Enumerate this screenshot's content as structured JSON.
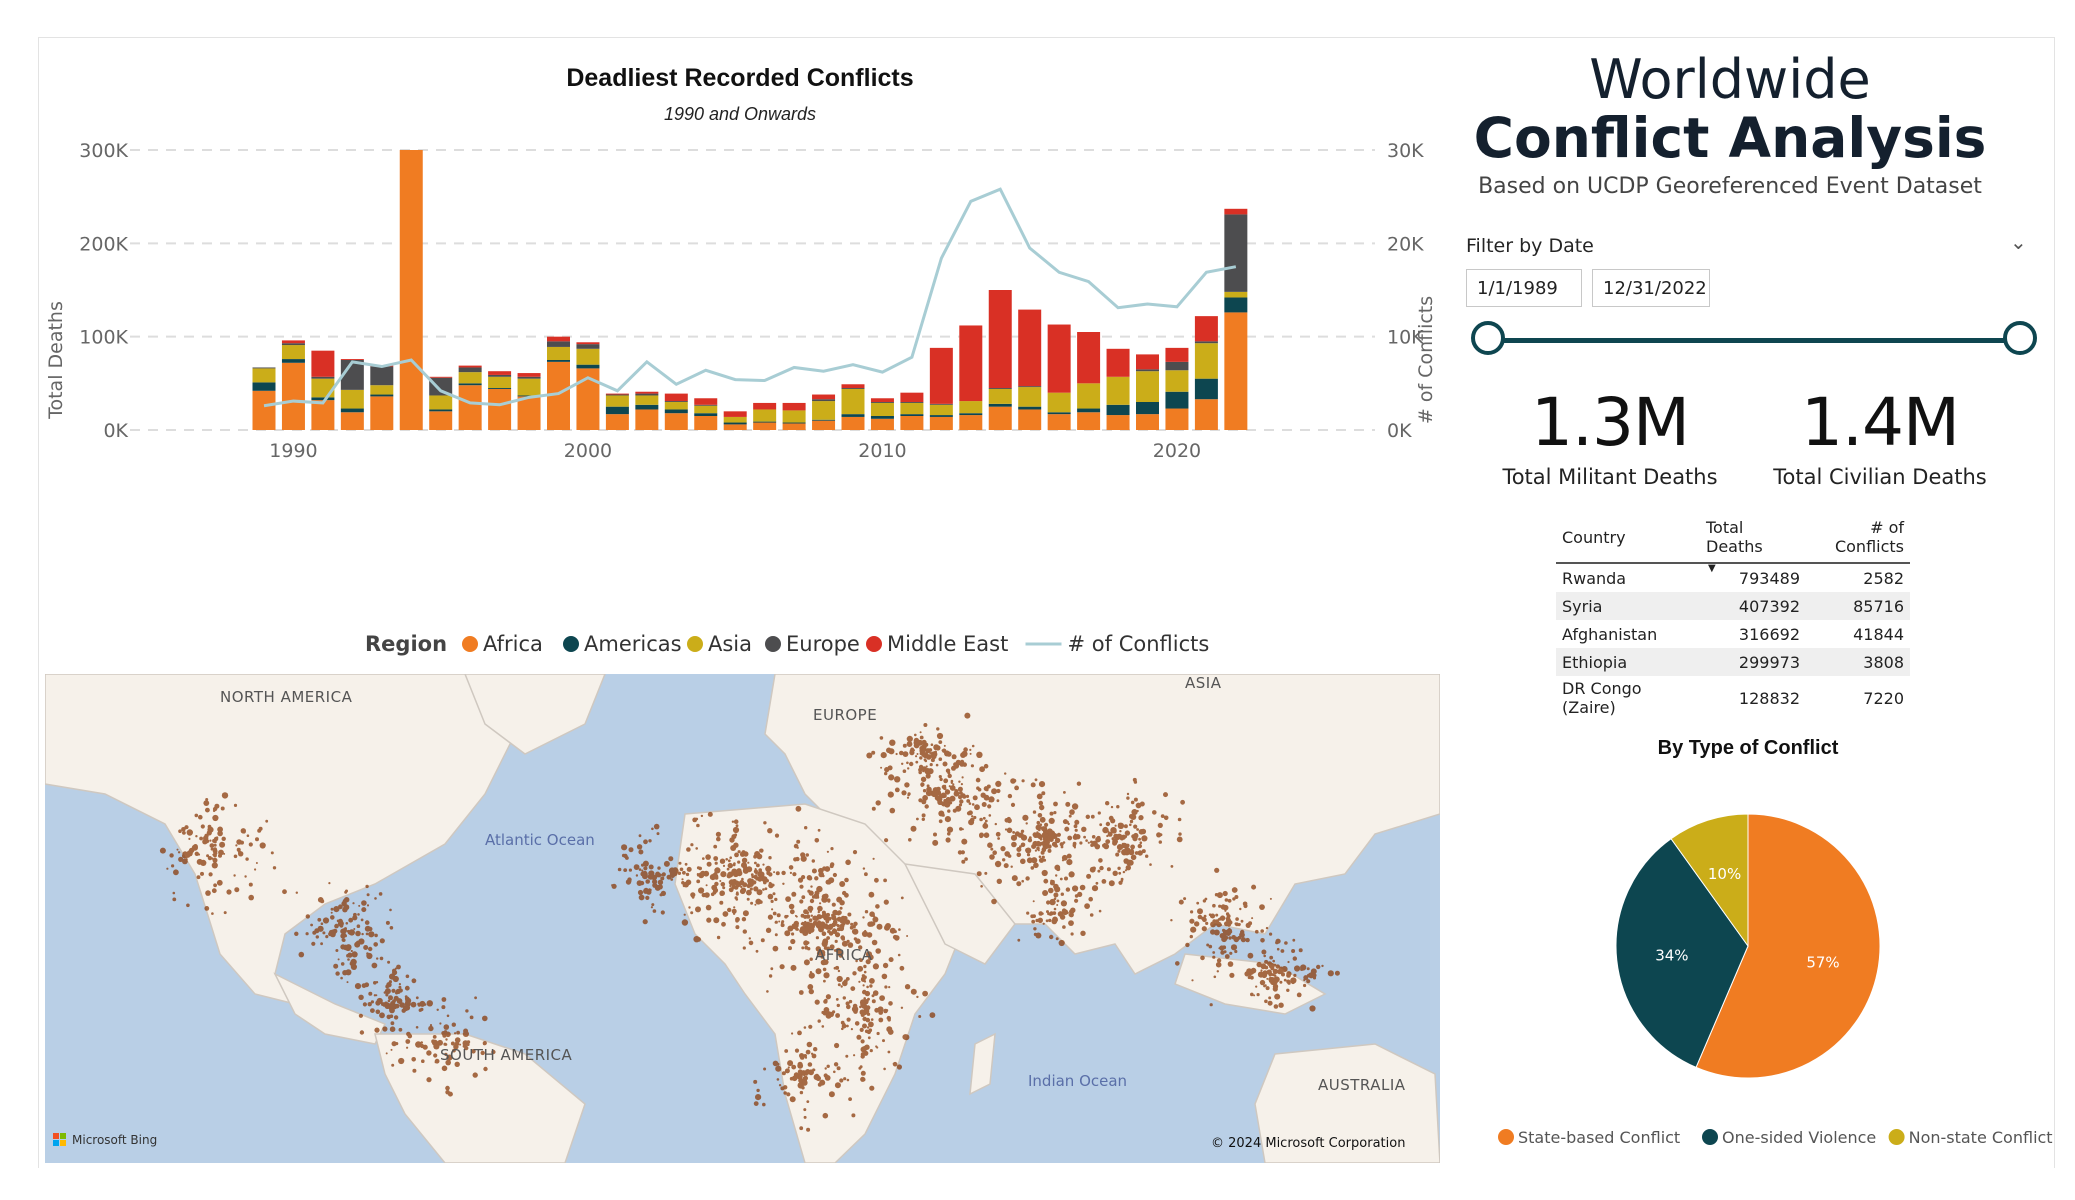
{
  "header": {
    "title_line1": "Worldwide",
    "title_line2": "Conflict Analysis",
    "subtitle": "Based on UCDP Georeferenced Event Dataset"
  },
  "filter": {
    "label": "Filter by Date",
    "start_date": "1/1/1989",
    "end_date": "12/31/2022"
  },
  "kpis": [
    {
      "value": "1.3M",
      "label": "Total Militant Deaths"
    },
    {
      "value": "1.4M",
      "label": "Total Civilian Deaths"
    }
  ],
  "table": {
    "columns": [
      "Country",
      "Total Deaths",
      "# of Conflicts"
    ],
    "rows": [
      [
        "Rwanda",
        "793489",
        "2582"
      ],
      [
        "Syria",
        "407392",
        "85716"
      ],
      [
        "Afghanistan",
        "316692",
        "41844"
      ],
      [
        "Ethiopia",
        "299973",
        "3808"
      ],
      [
        "DR Congo (Zaire)",
        "128832",
        "7220"
      ]
    ]
  },
  "map": {
    "labels": {
      "north_america": "NORTH AMERICA",
      "europe": "EUROPE",
      "asia": "ASIA",
      "africa": "AFRICA",
      "south_america": "SOUTH AMERICA",
      "australia": "AUSTRALIA",
      "atlantic": "Atlantic Ocean",
      "indian": "Indian Ocean"
    },
    "copyright": "© 2024 Microsoft Corporation",
    "provider": "Microsoft Bing"
  },
  "colors": {
    "Africa": "#f07c22",
    "Americas": "#0d4650",
    "Asia": "#cbad19",
    "Europe": "#4d4d4f",
    "Middle East": "#d93025",
    "line": "#a8cdd4"
  },
  "chart_data": [
    {
      "type": "bar",
      "title": "Deadliest Recorded Conflicts",
      "subtitle": "1990 and Onwards",
      "ylabel": "Total Deaths",
      "y2label": "# of Conflicts",
      "ylim": [
        0,
        300000
      ],
      "y2lim": [
        0,
        30000
      ],
      "yticks": [
        "0K",
        "100K",
        "200K",
        "300K"
      ],
      "y2ticks": [
        "0K",
        "10K",
        "20K",
        "30K"
      ],
      "xticks": [
        "1990",
        "2000",
        "2010",
        "2020"
      ],
      "legend_title": "Region",
      "legend_position": "bottom",
      "categories": [
        "1989",
        "1990",
        "1991",
        "1992",
        "1993",
        "1994",
        "1995",
        "1996",
        "1997",
        "1998",
        "1999",
        "2000",
        "2001",
        "2002",
        "2003",
        "2004",
        "2005",
        "2006",
        "2007",
        "2008",
        "2009",
        "2010",
        "2011",
        "2012",
        "2013",
        "2014",
        "2015",
        "2016",
        "2017",
        "2018",
        "2019",
        "2020",
        "2021",
        "2022"
      ],
      "series": [
        {
          "name": "Africa",
          "values": [
            42000,
            72000,
            32000,
            19000,
            36000,
            300000,
            20000,
            48000,
            44000,
            36000,
            73000,
            66000,
            17000,
            22000,
            18000,
            15000,
            6000,
            8000,
            7000,
            10000,
            14000,
            12000,
            15000,
            14000,
            16000,
            25000,
            22000,
            17000,
            19000,
            16000,
            17000,
            23000,
            33000,
            126000
          ]
        },
        {
          "name": "Americas",
          "values": [
            9000,
            4000,
            3000,
            4000,
            2000,
            0,
            2000,
            2000,
            1000,
            1000,
            2000,
            4000,
            8000,
            5000,
            4000,
            3000,
            2000,
            1000,
            1000,
            1000,
            3000,
            3000,
            2000,
            2000,
            2000,
            3000,
            3000,
            2000,
            4000,
            11000,
            13000,
            18000,
            22000,
            16000
          ]
        },
        {
          "name": "Asia",
          "values": [
            15000,
            15000,
            20000,
            20000,
            10000,
            0,
            15000,
            12000,
            12000,
            18000,
            14000,
            17000,
            12000,
            10000,
            8000,
            8000,
            6000,
            13000,
            13000,
            20000,
            27000,
            14000,
            12000,
            11000,
            13000,
            16000,
            21000,
            21000,
            27000,
            30000,
            33000,
            23000,
            38000,
            6000
          ]
        },
        {
          "name": "Europe",
          "values": [
            1000,
            2000,
            2000,
            32000,
            20000,
            0,
            19000,
            5000,
            2000,
            2000,
            6000,
            5000,
            1000,
            2000,
            1000,
            1000,
            0,
            0,
            0,
            2000,
            1000,
            1000,
            1000,
            1000,
            0,
            1000,
            1000,
            0,
            0,
            0,
            2000,
            9000,
            2000,
            83000
          ]
        },
        {
          "name": "Middle East",
          "values": [
            0,
            3000,
            28000,
            1000,
            1000,
            0,
            1000,
            2000,
            4000,
            4000,
            5000,
            2000,
            1000,
            2000,
            8000,
            7000,
            6000,
            7000,
            8000,
            5000,
            4000,
            4000,
            10000,
            60000,
            81000,
            105000,
            82000,
            73000,
            55000,
            30000,
            16000,
            15000,
            27000,
            6000
          ]
        },
        {
          "name": "# of Conflicts",
          "axis": "secondary",
          "type": "line",
          "values": [
            2600,
            3100,
            2900,
            7300,
            6800,
            7500,
            4200,
            2900,
            2700,
            3500,
            3900,
            5600,
            4200,
            7300,
            4900,
            6400,
            5400,
            5300,
            6700,
            6300,
            7000,
            6200,
            7800,
            18400,
            24500,
            25800,
            19500,
            16900,
            15900,
            13100,
            13500,
            13200,
            16900,
            17500
          ]
        }
      ]
    },
    {
      "type": "pie",
      "title": "By Type of Conflict",
      "legend_position": "bottom",
      "categories": [
        "State-based Conflict",
        "One-sided Violence",
        "Non-state Conflict"
      ],
      "values": [
        57,
        34,
        10
      ],
      "labels": [
        "57%",
        "34%",
        "10%"
      ],
      "colors": [
        "#f07c22",
        "#0d4650",
        "#cbad19"
      ]
    }
  ]
}
